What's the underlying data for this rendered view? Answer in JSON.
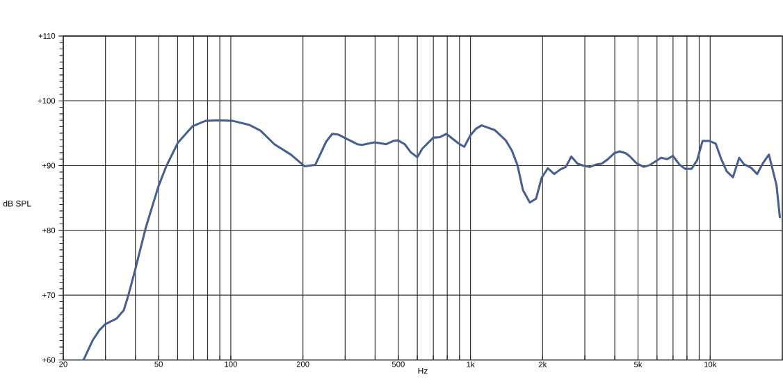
{
  "chart_data": {
    "type": "line",
    "xlabel": "Hz",
    "ylabel": "dB SPL",
    "log": "x",
    "grid": true,
    "xlim": [
      20,
      20000
    ],
    "ylim": [
      60,
      110
    ],
    "xticks": [
      20,
      {
        "value": 30,
        "label": null
      },
      {
        "value": 40,
        "label": null
      },
      50,
      {
        "value": 60,
        "label": null
      },
      {
        "value": 70,
        "label": null
      },
      {
        "value": 80,
        "label": null
      },
      {
        "value": 90,
        "label": null
      },
      100,
      200,
      {
        "value": 300,
        "label": null
      },
      {
        "value": 400,
        "label": null
      },
      500,
      {
        "value": 600,
        "label": null
      },
      {
        "value": 700,
        "label": null
      },
      {
        "value": 800,
        "label": null
      },
      {
        "value": 900,
        "label": null
      },
      {
        "value": 1000,
        "label": "1k"
      },
      {
        "value": 2000,
        "label": "2k"
      },
      {
        "value": 3000,
        "label": null
      },
      {
        "value": 4000,
        "label": null
      },
      {
        "value": 5000,
        "label": "5k"
      },
      {
        "value": 6000,
        "label": null
      },
      {
        "value": 7000,
        "label": null
      },
      {
        "value": 8000,
        "label": null
      },
      {
        "value": 9000,
        "label": null
      },
      {
        "value": 10000,
        "label": "10k"
      }
    ],
    "yticks": [
      {
        "value": 60,
        "label": "+60"
      },
      {
        "value": 61,
        "label": null
      },
      {
        "value": 62,
        "label": null
      },
      {
        "value": 63,
        "label": null
      },
      {
        "value": 64,
        "label": null
      },
      {
        "value": 65,
        "label": null
      },
      {
        "value": 66,
        "label": null
      },
      {
        "value": 67,
        "label": null
      },
      {
        "value": 68,
        "label": null
      },
      {
        "value": 69,
        "label": null
      },
      {
        "value": 70,
        "label": "+70"
      },
      {
        "value": 71,
        "label": null
      },
      {
        "value": 72,
        "label": null
      },
      {
        "value": 73,
        "label": null
      },
      {
        "value": 74,
        "label": null
      },
      {
        "value": 75,
        "label": null
      },
      {
        "value": 76,
        "label": null
      },
      {
        "value": 77,
        "label": null
      },
      {
        "value": 78,
        "label": null
      },
      {
        "value": 79,
        "label": null
      },
      {
        "value": 80,
        "label": "+80"
      },
      {
        "value": 81,
        "label": null
      },
      {
        "value": 82,
        "label": null
      },
      {
        "value": 83,
        "label": null
      },
      {
        "value": 84,
        "label": null
      },
      {
        "value": 85,
        "label": null
      },
      {
        "value": 86,
        "label": null
      },
      {
        "value": 87,
        "label": null
      },
      {
        "value": 88,
        "label": null
      },
      {
        "value": 89,
        "label": null
      },
      {
        "value": 90,
        "label": "+90"
      },
      {
        "value": 91,
        "label": null
      },
      {
        "value": 92,
        "label": null
      },
      {
        "value": 93,
        "label": null
      },
      {
        "value": 94,
        "label": null
      },
      {
        "value": 95,
        "label": null
      },
      {
        "value": 96,
        "label": null
      },
      {
        "value": 97,
        "label": null
      },
      {
        "value": 98,
        "label": null
      },
      {
        "value": 99,
        "label": null
      },
      {
        "value": 100,
        "label": "+100"
      },
      {
        "value": 101,
        "label": null
      },
      {
        "value": 102,
        "label": null
      },
      {
        "value": 103,
        "label": null
      },
      {
        "value": 104,
        "label": null
      },
      {
        "value": 105,
        "label": null
      },
      {
        "value": 106,
        "label": null
      },
      {
        "value": 107,
        "label": null
      },
      {
        "value": 108,
        "label": null
      },
      {
        "value": 109,
        "label": null
      },
      {
        "value": 110,
        "label": "+110"
      }
    ],
    "series": [
      {
        "color": "#48608f",
        "x": [
          24.3,
          26.5,
          28.3,
          29.9,
          33.4,
          35.8,
          37.4,
          39.9,
          44.1,
          49.8,
          53.8,
          60.1,
          69.4,
          78.4,
          89.5,
          102,
          119,
          133,
          152,
          178,
          203,
          225,
          250,
          265,
          280,
          337,
          353,
          398,
          445,
          476,
          498,
          532,
          562,
          600,
          629,
          699,
          747,
          793,
          893,
          942,
          1000,
          1055,
          1112,
          1261,
          1403,
          1489,
          1570,
          1656,
          1769,
          1878,
          1981,
          2103,
          2233,
          2370,
          2499,
          2635,
          2797,
          2949,
          3151,
          3368,
          3528,
          3721,
          3976,
          4194,
          4451,
          4631,
          4949,
          5288,
          5615,
          6243,
          6627,
          6990,
          7468,
          7876,
          8362,
          8814,
          9297,
          9934,
          10546,
          11120,
          11727,
          12450,
          13213,
          13844,
          14791,
          15702,
          16558,
          17580,
          18912,
          19547
        ],
        "values": [
          60,
          63.0,
          64.6,
          65.5,
          66.4,
          67.7,
          70.0,
          73.9,
          80.3,
          86.7,
          89.9,
          93.5,
          96.1,
          96.9,
          97.0,
          96.9,
          96.3,
          95.4,
          93.3,
          91.7,
          89.9,
          90.1,
          93.7,
          94.9,
          94.8,
          93.3,
          93.2,
          93.6,
          93.3,
          93.8,
          93.9,
          93.3,
          92.1,
          91.3,
          92.6,
          94.3,
          94.4,
          94.9,
          93.4,
          92.9,
          94.7,
          95.7,
          96.2,
          95.5,
          93.9,
          92.3,
          90.1,
          86.2,
          84.3,
          84.9,
          88.1,
          89.6,
          88.7,
          89.4,
          89.8,
          91.4,
          90.3,
          90.0,
          89.8,
          90.2,
          90.3,
          90.9,
          91.9,
          92.2,
          91.9,
          91.4,
          90.3,
          89.8,
          90.1,
          91.2,
          91.0,
          91.5,
          90.1,
          89.5,
          89.5,
          90.8,
          93.8,
          93.8,
          93.4,
          91.0,
          89.1,
          88.2,
          91.2,
          90.2,
          89.7,
          88.7,
          90.3,
          91.7,
          87.0,
          81.9
        ]
      }
    ]
  }
}
